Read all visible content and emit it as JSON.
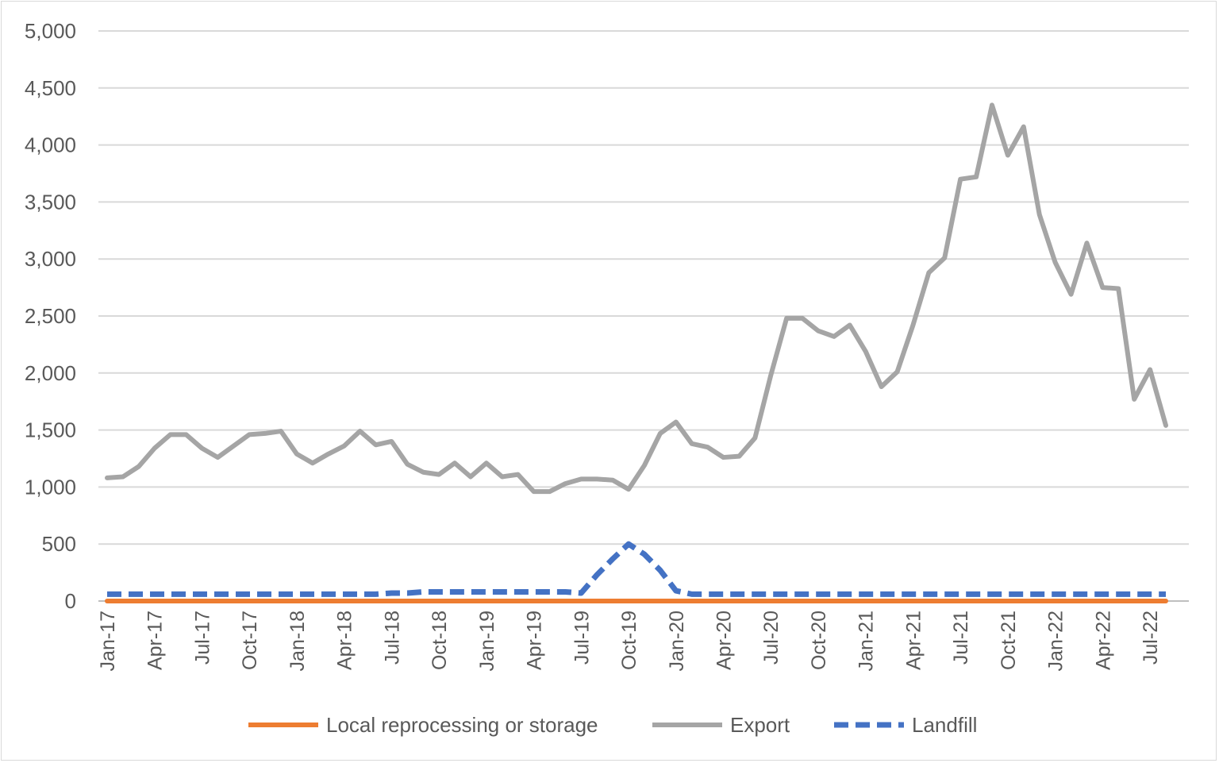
{
  "chart_data": {
    "type": "line",
    "x": [
      "Jan-17",
      "Feb-17",
      "Mar-17",
      "Apr-17",
      "May-17",
      "Jun-17",
      "Jul-17",
      "Aug-17",
      "Sep-17",
      "Oct-17",
      "Nov-17",
      "Dec-17",
      "Jan-18",
      "Feb-18",
      "Mar-18",
      "Apr-18",
      "May-18",
      "Jun-18",
      "Jul-18",
      "Aug-18",
      "Sep-18",
      "Oct-18",
      "Nov-18",
      "Dec-18",
      "Jan-19",
      "Feb-19",
      "Mar-19",
      "Apr-19",
      "May-19",
      "Jun-19",
      "Jul-19",
      "Aug-19",
      "Sep-19",
      "Oct-19",
      "Nov-19",
      "Dec-19",
      "Jan-20",
      "Feb-20",
      "Mar-20",
      "Apr-20",
      "May-20",
      "Jun-20",
      "Jul-20",
      "Aug-20",
      "Sep-20",
      "Oct-20",
      "Nov-20",
      "Dec-20",
      "Jan-21",
      "Feb-21",
      "Mar-21",
      "Apr-21",
      "May-21",
      "Jun-21",
      "Jul-21",
      "Aug-21",
      "Sep-21",
      "Oct-21",
      "Nov-21",
      "Dec-21",
      "Jan-22",
      "Feb-22",
      "Mar-22",
      "Apr-22",
      "May-22",
      "Jun-22",
      "Jul-22",
      "Aug-22"
    ],
    "tick_labels": [
      "Jan-17",
      "Apr-17",
      "Jul-17",
      "Oct-17",
      "Jan-18",
      "Apr-18",
      "Jul-18",
      "Oct-18",
      "Jan-19",
      "Apr-19",
      "Jul-19",
      "Oct-19",
      "Jan-20",
      "Apr-20",
      "Jul-20",
      "Oct-20",
      "Jan-21",
      "Apr-21",
      "Jul-21",
      "Oct-21",
      "Jan-22",
      "Apr-22",
      "Jul-22"
    ],
    "y_tick_labels": [
      "0",
      "500",
      "1,000",
      "1,500",
      "2,000",
      "2,500",
      "3,000",
      "3,500",
      "4,000",
      "4,500",
      "5,000"
    ],
    "ylim": [
      0,
      5000
    ],
    "grid": true,
    "legend_position": "bottom",
    "series": [
      {
        "name": "Local reprocessing or storage",
        "color": "#ED7D31",
        "style": "solid",
        "values": [
          0,
          0,
          0,
          0,
          0,
          0,
          0,
          0,
          0,
          0,
          0,
          0,
          0,
          0,
          0,
          0,
          0,
          0,
          0,
          0,
          0,
          0,
          0,
          0,
          0,
          0,
          0,
          0,
          0,
          0,
          0,
          0,
          0,
          0,
          0,
          0,
          0,
          0,
          0,
          0,
          0,
          0,
          0,
          0,
          0,
          0,
          0,
          0,
          0,
          0,
          0,
          0,
          0,
          0,
          0,
          0,
          0,
          0,
          0,
          0,
          0,
          0,
          0,
          0,
          0,
          0,
          0,
          0
        ]
      },
      {
        "name": "Export",
        "color": "#A5A5A5",
        "style": "solid",
        "values": [
          1080,
          1090,
          1180,
          1340,
          1460,
          1460,
          1340,
          1260,
          1360,
          1460,
          1470,
          1490,
          1290,
          1210,
          1290,
          1360,
          1490,
          1370,
          1400,
          1200,
          1130,
          1110,
          1210,
          1090,
          1210,
          1090,
          1110,
          960,
          960,
          1030,
          1070,
          1070,
          1060,
          980,
          1190,
          1470,
          1570,
          1380,
          1350,
          1260,
          1270,
          1430,
          1980,
          2480,
          2480,
          2370,
          2320,
          2420,
          2190,
          1880,
          2010,
          2420,
          2880,
          3010,
          3700,
          3720,
          4350,
          3910,
          4160,
          3390,
          2970,
          2690,
          3140,
          2750,
          2740,
          1770,
          2030,
          1540
        ]
      },
      {
        "name": "Landfill",
        "color": "#4472C4",
        "style": "dashed",
        "values": [
          60,
          60,
          60,
          60,
          60,
          60,
          60,
          60,
          60,
          60,
          60,
          60,
          60,
          60,
          60,
          60,
          60,
          60,
          70,
          70,
          80,
          80,
          80,
          80,
          80,
          80,
          80,
          80,
          80,
          80,
          70,
          230,
          370,
          500,
          410,
          270,
          90,
          60,
          60,
          60,
          60,
          60,
          60,
          60,
          60,
          60,
          60,
          60,
          60,
          60,
          60,
          60,
          60,
          60,
          60,
          60,
          60,
          60,
          60,
          60,
          60,
          60,
          60,
          60,
          60,
          60,
          60,
          60
        ]
      }
    ]
  }
}
